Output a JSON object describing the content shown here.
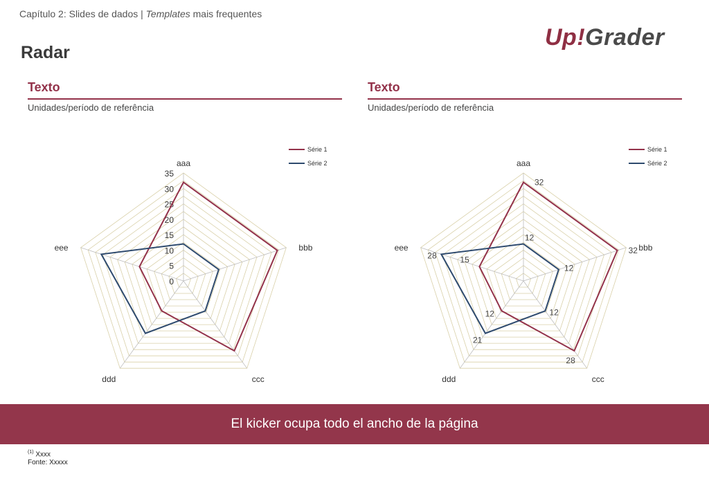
{
  "header": {
    "chapter_prefix": "Capítulo 2: Slides de dados | ",
    "chapter_italic": "Templates",
    "chapter_suffix": " mais frequentes",
    "title": "Radar"
  },
  "logo": {
    "part1": "Up",
    "part2": "!",
    "part3": "Grader"
  },
  "colors": {
    "series1": "#93324a",
    "series2": "#2e4a6e",
    "grid": "#d9d0a8",
    "spoke": "#bdbdbd",
    "kicker_bg": "#93364b"
  },
  "panels": [
    {
      "title": "Texto",
      "subtitle": "Unidades/período de referência"
    },
    {
      "title": "Texto",
      "subtitle": "Unidades/período de referência"
    }
  ],
  "chart_data": [
    {
      "type": "radar",
      "categories": [
        "aaa",
        "bbb",
        "ccc",
        "ddd",
        "eee"
      ],
      "series": [
        {
          "name": "Série 1",
          "values": [
            32,
            32,
            28,
            12,
            15
          ]
        },
        {
          "name": "Série 2",
          "values": [
            12,
            12,
            12,
            21,
            28
          ]
        }
      ],
      "rmax": 35,
      "ticks": [
        0,
        5,
        10,
        15,
        20,
        25,
        30,
        35
      ],
      "show_tick_labels": true,
      "show_data_labels": false,
      "legend": "top-right"
    },
    {
      "type": "radar",
      "categories": [
        "aaa",
        "bbb",
        "ccc",
        "ddd",
        "eee"
      ],
      "series": [
        {
          "name": "Série 1",
          "values": [
            32,
            32,
            28,
            12,
            15
          ]
        },
        {
          "name": "Série 2",
          "values": [
            12,
            12,
            12,
            21,
            28
          ]
        }
      ],
      "rmax": 35,
      "ticks": [
        0,
        5,
        10,
        15,
        20,
        25,
        30,
        35
      ],
      "show_tick_labels": false,
      "show_data_labels": true,
      "legend": "top-right"
    }
  ],
  "kicker": "El kicker ocupa todo el ancho de la página",
  "footnotes": {
    "marker": "(1)",
    "note": " Xxxx",
    "source": "Fonte: Xxxxx"
  }
}
